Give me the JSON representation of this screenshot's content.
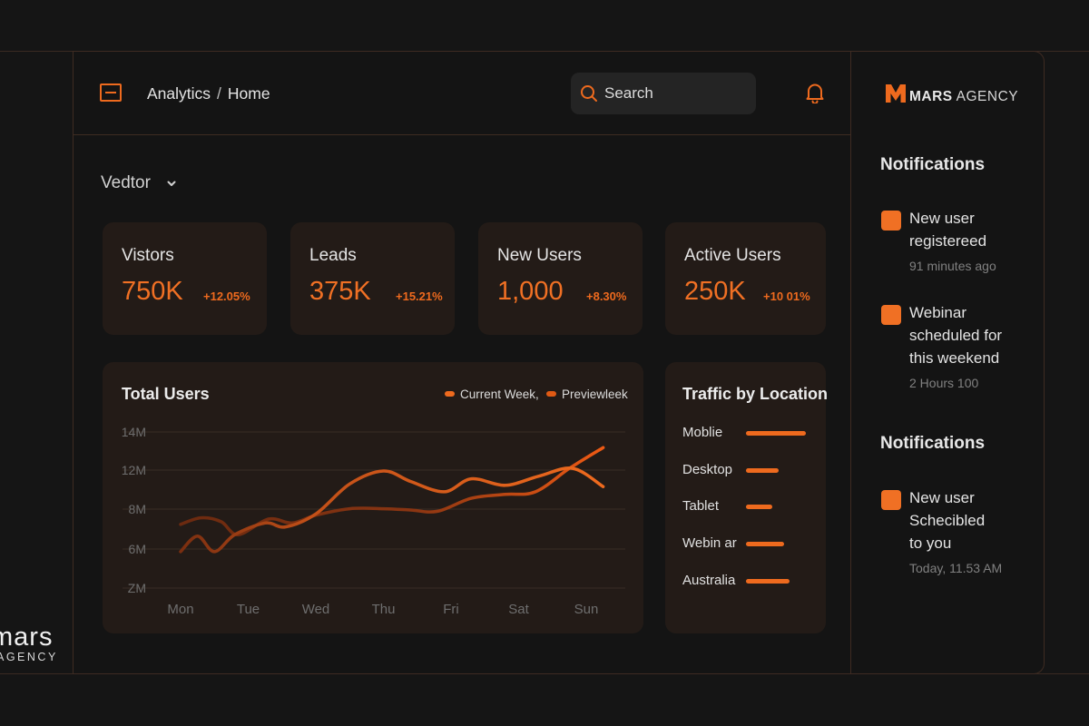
{
  "background": {
    "logo_line1": "mars",
    "logo_line2": "AGENCY"
  },
  "header": {
    "breadcrumb": [
      "Analytics",
      "Home"
    ],
    "search_placeholder": "Search"
  },
  "selector": {
    "label": "Vedtor"
  },
  "stats": [
    {
      "label": "Vistors",
      "value": "750K",
      "change": "+12.05%"
    },
    {
      "label": "Leads",
      "value": "375K",
      "change": "+15.21%"
    },
    {
      "label": "New Users",
      "value": "1,000",
      "change": "+8.30%"
    },
    {
      "label": "Active Users",
      "value": "250K",
      "change": "+10 01%"
    }
  ],
  "chart": {
    "title": "Total Users",
    "legend": [
      "Current Week,",
      "Previewleek"
    ]
  },
  "chart_data": {
    "type": "line",
    "title": "Total Users",
    "categories": [
      "Mon",
      "Tue",
      "Wed",
      "Thu",
      "Fri",
      "Sat",
      "Sun"
    ],
    "y_tick_labels": [
      "14M",
      "12M",
      "8M",
      "6M",
      "ZM"
    ],
    "ylim": [
      2,
      14
    ],
    "series": [
      {
        "name": "Current Week,",
        "x": [
          0,
          0.25,
          0.5,
          0.8,
          1.25,
          1.55,
          2.0,
          2.5,
          3.0,
          3.4,
          3.9,
          4.3,
          4.8,
          5.3,
          5.8,
          6.25
        ],
        "values": [
          4.8,
          6.0,
          4.8,
          6.1,
          7.0,
          6.7,
          7.7,
          10.0,
          11.0,
          10.2,
          9.4,
          10.4,
          9.9,
          10.6,
          11.2,
          9.8
        ]
      },
      {
        "name": "Previewleek",
        "x": [
          0,
          0.3,
          0.6,
          0.85,
          1.3,
          1.65,
          2.0,
          2.5,
          3.0,
          3.4,
          3.8,
          4.3,
          4.8,
          5.25,
          5.75,
          6.25
        ],
        "values": [
          6.9,
          7.4,
          7.1,
          6.1,
          7.3,
          7.0,
          7.6,
          8.1,
          8.1,
          8.0,
          7.9,
          8.9,
          9.2,
          9.4,
          11.2,
          12.8
        ]
      }
    ]
  },
  "traffic": {
    "title": "Traffic by Location",
    "items": [
      {
        "label": "Moblie",
        "share": 1.0
      },
      {
        "label": "Desktop",
        "share": 0.55
      },
      {
        "label": "Tablet",
        "share": 0.44
      },
      {
        "label": "Webin ar",
        "share": 0.63
      },
      {
        "label": "Australia",
        "share": 0.73
      }
    ]
  },
  "sidebar": {
    "brand_bold": "MARS",
    "brand_light": "AGENCY",
    "section1_title": "Notifications",
    "section2_title": "Notifications",
    "notifications": [
      {
        "line1": "New user",
        "line2": "registereed",
        "line3": "",
        "time": "91 minutes ago"
      },
      {
        "line1": "Webinar",
        "line2": "scheduled for",
        "line3": "this weekend",
        "time": "2 Hours 100"
      },
      {
        "line1": "New user",
        "line2": "Schecibled",
        "line3": "to you",
        "time": "Today, 11.53 AM"
      }
    ]
  },
  "colors": {
    "accent": "#ee6a1e",
    "accent_dark": "#9a3a12",
    "card_bg": "#231b17",
    "page_bg": "#151515"
  }
}
